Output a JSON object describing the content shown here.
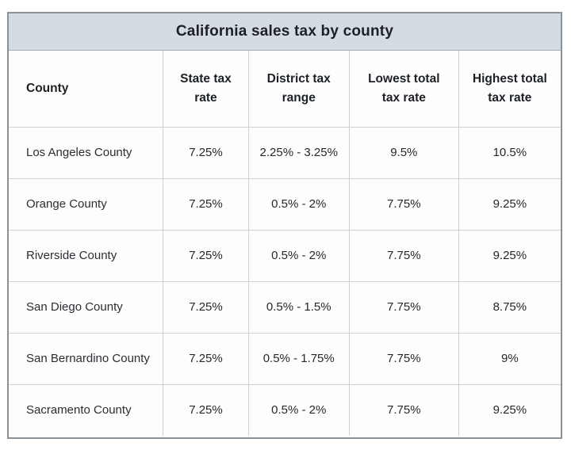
{
  "colors": {
    "title_bar_bg": "#d4dbe2",
    "outer_border": "#8b9298",
    "gridline": "#ccd1d6",
    "title_text": "#1d2126",
    "cell_text": "#2a2e33",
    "page_bg": "#ffffff"
  },
  "chart_data": {
    "type": "table",
    "title": "California sales tax by county",
    "columns": [
      "County",
      "State tax rate",
      "District tax range",
      "Lowest total tax rate",
      "Highest total tax rate"
    ],
    "rows": [
      [
        "Los Angeles County",
        "7.25%",
        "2.25% - 3.25%",
        "9.5%",
        "10.5%"
      ],
      [
        "Orange County",
        "7.25%",
        "0.5% - 2%",
        "7.75%",
        "9.25%"
      ],
      [
        "Riverside County",
        "7.25%",
        "0.5% - 2%",
        "7.75%",
        "9.25%"
      ],
      [
        "San Diego County",
        "7.25%",
        "0.5% - 1.5%",
        "7.75%",
        "8.75%"
      ],
      [
        "San Bernardino County",
        "7.25%",
        "0.5% - 1.75%",
        "7.75%",
        "9%"
      ],
      [
        "Sacramento County",
        "7.25%",
        "0.5% - 2%",
        "7.75%",
        "9.25%"
      ]
    ]
  }
}
